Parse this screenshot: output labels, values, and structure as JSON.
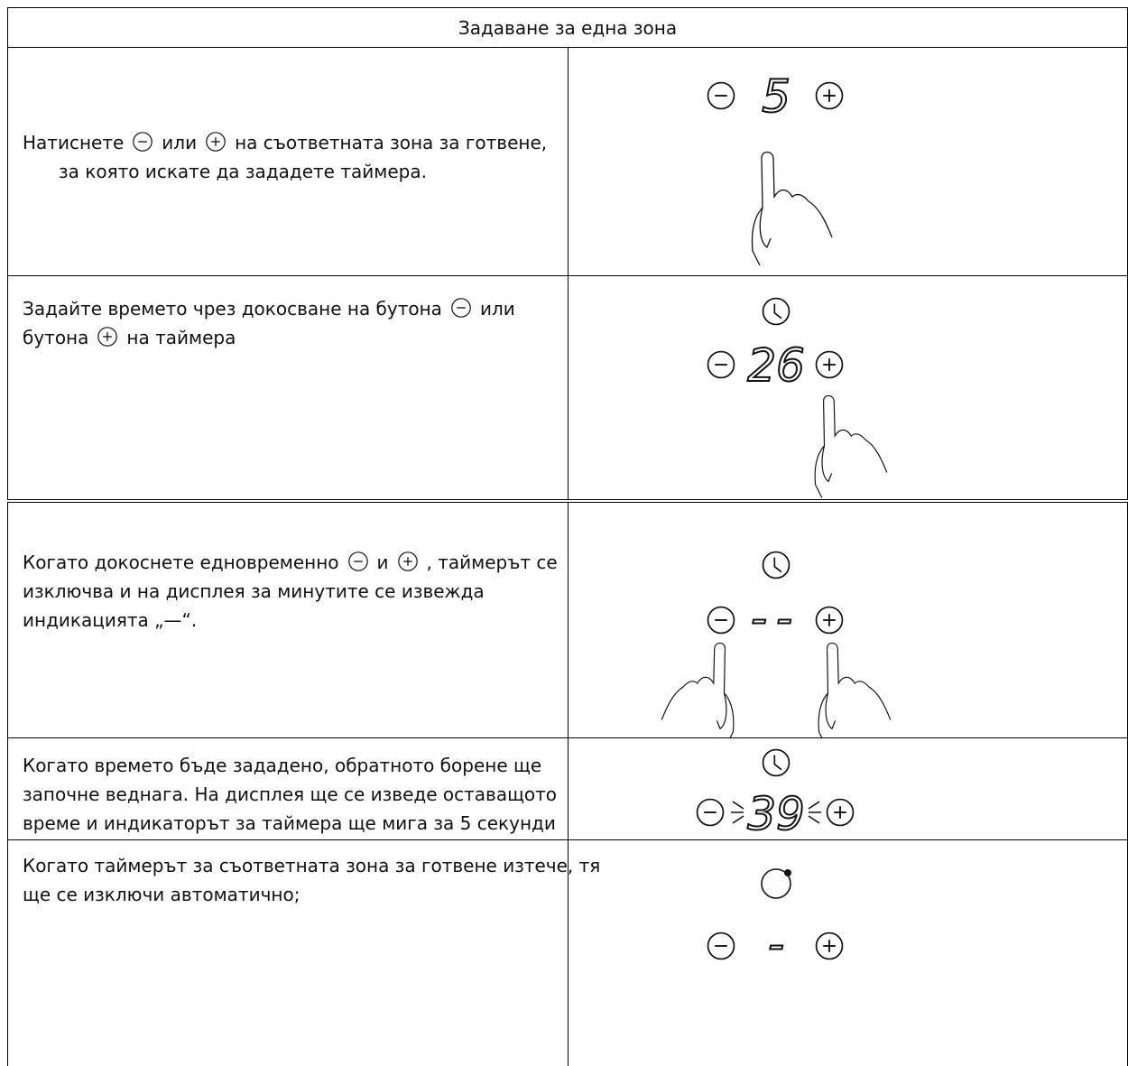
{
  "header": {
    "title": "Задаване за една зона"
  },
  "rows": [
    {
      "lines": [
        [
          "Натиснете",
          "или",
          "на съответната зона за готвене,"
        ],
        [
          "за която искате да зададете таймера."
        ]
      ],
      "display": "5"
    },
    {
      "lines": [
        [
          "Задайте времето чрез докосване на бутона",
          "или"
        ],
        [
          "бутона",
          "на таймера"
        ]
      ],
      "display": "26"
    },
    {
      "lines": [
        [
          "Когато докоснете едновременно",
          "и",
          ", таймерът се"
        ],
        [
          "изключва и на дисплея за минутите се извежда"
        ],
        [
          "индикацията „—“."
        ]
      ],
      "display": "--"
    },
    {
      "lines": [
        [
          "Когато времето бъде зададено, обратното борене ще"
        ],
        [
          "започне веднага. На дисплея ще се изведе оставащото"
        ],
        [
          "време и индикаторът за таймера ще мига за 5 секунди"
        ]
      ],
      "display": "39"
    },
    {
      "lines": [
        [
          "Когато таймерът за съответната зона за готвене изтече, тя"
        ],
        [
          "ще се изключи автоматично;"
        ]
      ],
      "display": "-"
    }
  ]
}
